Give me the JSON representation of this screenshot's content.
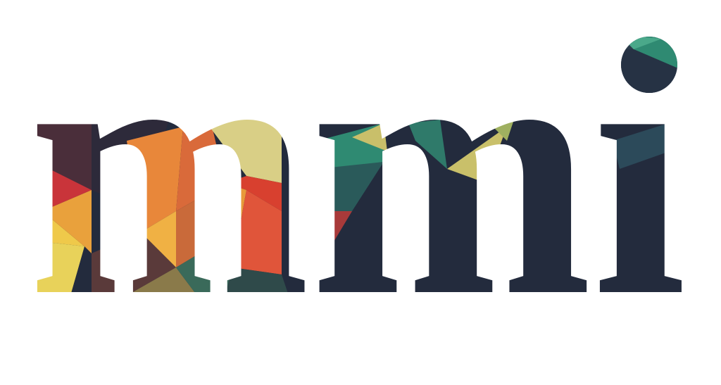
{
  "logo": {
    "text": "mmi",
    "style": "low-poly geometric fill",
    "colors": {
      "background": "#ffffff",
      "navy": "#232b3d",
      "teal": "#2f8a72",
      "olive": "#c9bf6a",
      "red": "#d8402f",
      "orange": "#e8873a",
      "yellow": "#efc94a",
      "plum": "#4a2e3a"
    }
  }
}
